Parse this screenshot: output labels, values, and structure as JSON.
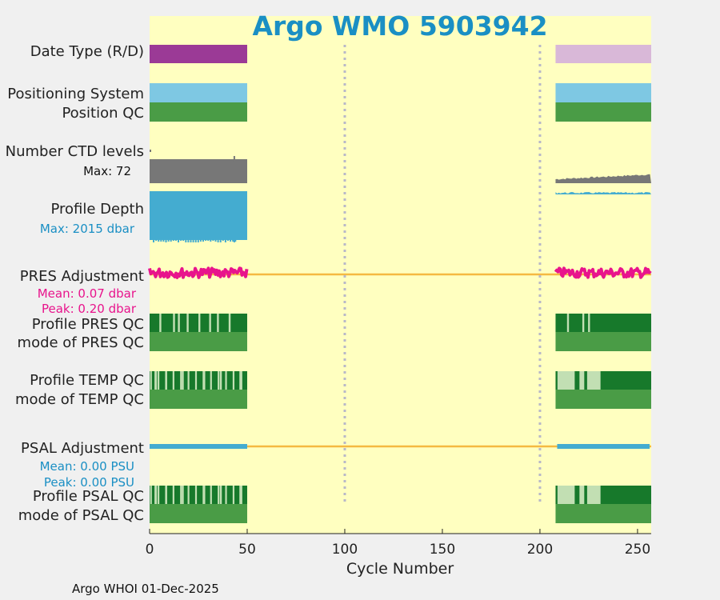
{
  "chart_data": {
    "type": "timeline",
    "title": "Argo WMO 5903942",
    "xlabel": "Cycle Number",
    "xlim": [
      0,
      257
    ],
    "xticks": [
      0,
      50,
      100,
      150,
      200,
      250
    ],
    "vlines": [
      100,
      200
    ],
    "data_segments": [
      [
        0,
        50
      ],
      [
        208,
        257
      ]
    ],
    "rows": [
      {
        "id": "date-type",
        "labels": [
          "Date Type (R/D)"
        ]
      },
      {
        "id": "positioning",
        "labels": [
          "Positioning System",
          "Position QC"
        ]
      },
      {
        "id": "ctd-levels",
        "labels": [
          "Number CTD levels"
        ],
        "note": "Max: 72"
      },
      {
        "id": "profile-depth",
        "labels": [
          "Profile Depth"
        ],
        "note": "Max: 2015 dbar"
      },
      {
        "id": "pres-adjustment",
        "labels": [
          "PRES Adjustment"
        ],
        "notes": [
          "Mean: 0.07 dbar",
          "Peak: 0.20 dbar"
        ]
      },
      {
        "id": "pres-qc",
        "labels": [
          "Profile PRES QC",
          "mode of PRES QC"
        ]
      },
      {
        "id": "temp-qc",
        "labels": [
          "Profile TEMP QC",
          "mode of TEMP QC"
        ]
      },
      {
        "id": "psal-adjustment",
        "labels": [
          "PSAL Adjustment"
        ],
        "notes": [
          "Mean: 0.00 PSU",
          "Peak: 0.00 PSU"
        ]
      },
      {
        "id": "psal-qc",
        "labels": [
          "Profile PSAL QC",
          "mode of PSAL QC"
        ]
      }
    ],
    "footer": "Argo WHOI 01-Dec-2025",
    "colors": {
      "plot_bg": "#ffffc0",
      "realtime": "#9b3a96",
      "delayed": "#d9b8d8",
      "positioning": "#7ec8e3",
      "qc_good": "#4a9c46",
      "qc_dark": "#17792b",
      "qc_light": "#c2dfb3",
      "ctd": "#777777",
      "depth": "#44acd0",
      "pres_adj": "#e8148c",
      "psal_adj": "#44acd0",
      "zero_line": "#f5b942",
      "note_blue": "#1a8fc4",
      "note_pink": "#e8148c",
      "vline": "#b8b8c8"
    }
  }
}
